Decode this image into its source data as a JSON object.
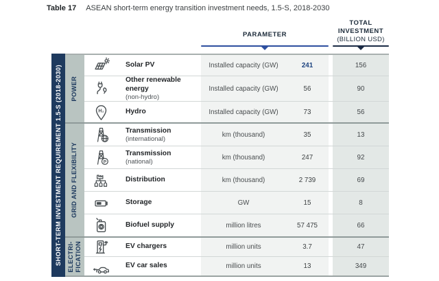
{
  "title": {
    "label": "Table 17",
    "text": "ASEAN short-term energy transition investment needs, 1.5-S, 2018-2030"
  },
  "header": {
    "parameter": "PARAMETER",
    "total_investment": [
      "TOTAL",
      "INVESTMENT",
      "(BILLION USD)"
    ]
  },
  "sidebar": {
    "label": "SHORT-TERM INVESTMENT REQUIREMENT 1.5-S (2018-2030)"
  },
  "table": {
    "groups": [
      {
        "label": "POWER",
        "rows": [
          {
            "icon": "solar-panel-icon",
            "label": "Solar PV",
            "sublabel": "",
            "parameter": "Installed capacity (GW)",
            "value": "241",
            "total": "156",
            "highlight": true
          },
          {
            "icon": "plug-leaf-icon",
            "label": "Other renewable energy",
            "sublabel": "(non-hydro)",
            "parameter": "Installed capacity (GW)",
            "value": "56",
            "total": "90",
            "highlight": false
          },
          {
            "icon": "hydro-pin-icon",
            "label": "Hydro",
            "sublabel": "",
            "parameter": "Installed capacity (GW)",
            "value": "73",
            "total": "56",
            "highlight": false
          }
        ]
      },
      {
        "label": "GRID AND FLEXIBILITY",
        "rows": [
          {
            "icon": "transmission-international-icon",
            "label": "Transmission",
            "sublabel": "(international)",
            "parameter": "km (thousand)",
            "value": "35",
            "total": "13",
            "highlight": false
          },
          {
            "icon": "transmission-national-icon",
            "label": "Transmission",
            "sublabel": "(national)",
            "parameter": "km (thousand)",
            "value": "247",
            "total": "92",
            "highlight": false
          },
          {
            "icon": "distribution-network-icon",
            "label": "Distribution",
            "sublabel": "",
            "parameter": "km (thousand)",
            "value": "2 739",
            "total": "69",
            "highlight": false
          },
          {
            "icon": "battery-storage-icon",
            "label": "Storage",
            "sublabel": "",
            "parameter": "GW",
            "value": "15",
            "total": "8",
            "highlight": false
          },
          {
            "icon": "biofuel-can-icon",
            "label": "Biofuel supply",
            "sublabel": "",
            "parameter": "million litres",
            "value": "57 475",
            "total": "66",
            "highlight": false
          }
        ]
      },
      {
        "label": "ELECTRI-\nFICATION",
        "rows": [
          {
            "icon": "ev-charger-icon",
            "label": "EV chargers",
            "sublabel": "",
            "parameter": "million units",
            "value": "3.7",
            "total": "47",
            "highlight": false
          },
          {
            "icon": "ev-car-icon",
            "label": "EV car sales",
            "sublabel": "",
            "parameter": "million units",
            "value": "13",
            "total": "349",
            "highlight": false
          }
        ]
      }
    ]
  },
  "colors": {
    "sidebar_navy": "#1e3a5e",
    "category_sage": "#b9c4c1",
    "parameter_band_bg": "#f1f3f2",
    "total_column_bg": "#e3e8e6",
    "parameter_rule": "#2d4f9f",
    "total_rule": "#1b2b45",
    "highlight_value": "#1d4380"
  }
}
